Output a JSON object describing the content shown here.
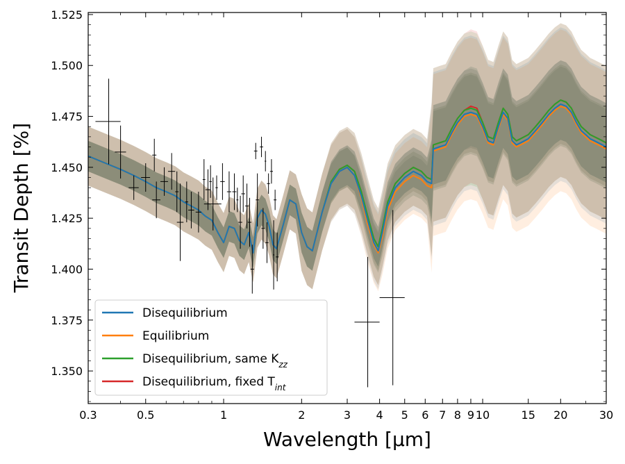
{
  "chart_data": {
    "type": "line",
    "xlabel": "Wavelength [μm]",
    "ylabel": "Transit Depth [%]",
    "xscale": "log",
    "xlim": [
      0.3,
      30
    ],
    "ylim": [
      1.334,
      1.526
    ],
    "x_ticks": [
      0.3,
      0.5,
      1,
      2,
      3,
      4,
      5,
      6,
      7,
      8,
      9,
      10,
      15,
      20,
      30
    ],
    "x_tick_labels": [
      "0.3",
      "0.5",
      "1",
      "2",
      "3",
      "4",
      "5",
      "6",
      "7",
      "8",
      "9",
      "10",
      "15",
      "20",
      "30"
    ],
    "y_ticks": [
      1.35,
      1.375,
      1.4,
      1.425,
      1.45,
      1.475,
      1.5,
      1.525
    ],
    "y_tick_labels": [
      "1.350",
      "1.375",
      "1.400",
      "1.425",
      "1.450",
      "1.475",
      "1.500",
      "1.525"
    ],
    "legend_position": "lower-left",
    "x": [
      0.3,
      0.35,
      0.4,
      0.45,
      0.5,
      0.55,
      0.6,
      0.65,
      0.7,
      0.75,
      0.8,
      0.85,
      0.9,
      0.95,
      1.0,
      1.05,
      1.1,
      1.15,
      1.2,
      1.25,
      1.3,
      1.35,
      1.4,
      1.45,
      1.5,
      1.55,
      1.6,
      1.7,
      1.8,
      1.9,
      2.0,
      2.1,
      2.2,
      2.4,
      2.6,
      2.8,
      3.0,
      3.2,
      3.4,
      3.6,
      3.8,
      3.95,
      4.1,
      4.3,
      4.6,
      5.0,
      5.4,
      5.8,
      6.1,
      6.35,
      6.45,
      6.8,
      7.2,
      7.6,
      8.0,
      8.5,
      9.0,
      9.5,
      10.0,
      10.5,
      11.0,
      11.5,
      12.0,
      12.5,
      13.0,
      13.5,
      14.0,
      15.0,
      16.0,
      17.0,
      18.0,
      19.0,
      20.0,
      21.0,
      22.0,
      23.0,
      24.0,
      25.0,
      26.0,
      27.0,
      28.0,
      29.0,
      30.0
    ],
    "series": [
      {
        "name": "Disequilibrium",
        "color": "#1f77b4",
        "values": [
          1.4555,
          1.452,
          1.449,
          1.446,
          1.443,
          1.44,
          1.438,
          1.436,
          1.433,
          1.431,
          1.429,
          1.426,
          1.424,
          1.418,
          1.413,
          1.421,
          1.42,
          1.414,
          1.412,
          1.418,
          1.408,
          1.425,
          1.429,
          1.427,
          1.421,
          1.412,
          1.41,
          1.422,
          1.434,
          1.432,
          1.418,
          1.411,
          1.409,
          1.428,
          1.442,
          1.448,
          1.45,
          1.446,
          1.436,
          1.424,
          1.413,
          1.409,
          1.418,
          1.431,
          1.44,
          1.445,
          1.448,
          1.446,
          1.443,
          1.442,
          1.459,
          1.46,
          1.461,
          1.467,
          1.472,
          1.476,
          1.477,
          1.476,
          1.47,
          1.463,
          1.462,
          1.47,
          1.477,
          1.474,
          1.463,
          1.461,
          1.462,
          1.464,
          1.468,
          1.472,
          1.476,
          1.479,
          1.481,
          1.48,
          1.477,
          1.472,
          1.468,
          1.466,
          1.464,
          1.463,
          1.462,
          1.461,
          1.46
        ]
      },
      {
        "name": "Equilibrium",
        "color": "#ff7f0e",
        "values": [
          1.4555,
          1.452,
          1.449,
          1.446,
          1.443,
          1.44,
          1.438,
          1.436,
          1.433,
          1.431,
          1.429,
          1.426,
          1.424,
          1.418,
          1.413,
          1.421,
          1.42,
          1.414,
          1.412,
          1.418,
          1.408,
          1.425,
          1.429,
          1.427,
          1.421,
          1.412,
          1.41,
          1.422,
          1.434,
          1.432,
          1.418,
          1.411,
          1.409,
          1.428,
          1.442,
          1.448,
          1.45,
          1.446,
          1.435,
          1.422,
          1.412,
          1.408,
          1.416,
          1.429,
          1.438,
          1.443,
          1.446,
          1.444,
          1.441,
          1.44,
          1.458,
          1.459,
          1.46,
          1.466,
          1.471,
          1.475,
          1.476,
          1.475,
          1.469,
          1.462,
          1.461,
          1.469,
          1.476,
          1.473,
          1.462,
          1.46,
          1.461,
          1.463,
          1.467,
          1.471,
          1.475,
          1.478,
          1.48,
          1.479,
          1.476,
          1.471,
          1.467,
          1.465,
          1.463,
          1.462,
          1.461,
          1.46,
          1.459
        ]
      },
      {
        "name": "Disequilibrium, same K_zz",
        "color": "#2ca02c",
        "values": [
          1.4555,
          1.452,
          1.449,
          1.446,
          1.443,
          1.44,
          1.438,
          1.436,
          1.433,
          1.431,
          1.429,
          1.426,
          1.424,
          1.418,
          1.413,
          1.421,
          1.42,
          1.414,
          1.412,
          1.418,
          1.408,
          1.425,
          1.429,
          1.427,
          1.421,
          1.412,
          1.41,
          1.422,
          1.434,
          1.432,
          1.418,
          1.411,
          1.409,
          1.428,
          1.443,
          1.449,
          1.451,
          1.448,
          1.438,
          1.426,
          1.415,
          1.411,
          1.42,
          1.433,
          1.442,
          1.447,
          1.45,
          1.448,
          1.445,
          1.444,
          1.461,
          1.462,
          1.463,
          1.469,
          1.474,
          1.478,
          1.479,
          1.478,
          1.472,
          1.465,
          1.464,
          1.472,
          1.479,
          1.476,
          1.465,
          1.463,
          1.464,
          1.466,
          1.47,
          1.474,
          1.478,
          1.481,
          1.483,
          1.482,
          1.479,
          1.474,
          1.47,
          1.468,
          1.466,
          1.465,
          1.464,
          1.463,
          1.462
        ]
      },
      {
        "name": "Disequilibrium, fixed T_int",
        "color": "#d62728",
        "values": [
          1.4555,
          1.452,
          1.449,
          1.446,
          1.443,
          1.44,
          1.438,
          1.436,
          1.433,
          1.431,
          1.429,
          1.426,
          1.424,
          1.418,
          1.413,
          1.421,
          1.42,
          1.414,
          1.412,
          1.418,
          1.408,
          1.425,
          1.429,
          1.427,
          1.421,
          1.412,
          1.41,
          1.422,
          1.434,
          1.432,
          1.418,
          1.411,
          1.409,
          1.428,
          1.443,
          1.449,
          1.451,
          1.448,
          1.438,
          1.426,
          1.415,
          1.411,
          1.42,
          1.433,
          1.442,
          1.447,
          1.45,
          1.448,
          1.445,
          1.444,
          1.461,
          1.462,
          1.463,
          1.469,
          1.474,
          1.478,
          1.48,
          1.479,
          1.472,
          1.465,
          1.464,
          1.472,
          1.479,
          1.476,
          1.465,
          1.463,
          1.464,
          1.466,
          1.47,
          1.474,
          1.478,
          1.481,
          1.483,
          1.482,
          1.479,
          1.474,
          1.47,
          1.468,
          1.466,
          1.465,
          1.464,
          1.463,
          1.462
        ]
      }
    ],
    "legend_labels": [
      {
        "text": "Disequilibrium",
        "subscript": ""
      },
      {
        "text": "Equilibrium",
        "subscript": ""
      },
      {
        "text": "Disequilibrium, same K",
        "subscript": "zz"
      },
      {
        "text": "Disequilibrium, fixed T",
        "subscript": "int"
      }
    ],
    "observations": [
      {
        "x": 0.36,
        "y": 1.4725,
        "xerr": 0.04,
        "yerr": 0.021
      },
      {
        "x": 0.4,
        "y": 1.4575,
        "xerr": 0.02,
        "yerr": 0.013
      },
      {
        "x": 0.45,
        "y": 1.44,
        "xerr": 0.02,
        "yerr": 0.006
      },
      {
        "x": 0.5,
        "y": 1.445,
        "xerr": 0.02,
        "yerr": 0.007
      },
      {
        "x": 0.54,
        "y": 1.456,
        "xerr": 0.01,
        "yerr": 0.008
      },
      {
        "x": 0.55,
        "y": 1.434,
        "xerr": 0.02,
        "yerr": 0.009
      },
      {
        "x": 0.59,
        "y": 1.443,
        "xerr": 0.02,
        "yerr": 0.007
      },
      {
        "x": 0.63,
        "y": 1.448,
        "xerr": 0.02,
        "yerr": 0.009
      },
      {
        "x": 0.66,
        "y": 1.438,
        "xerr": 0.01,
        "yerr": 0.01
      },
      {
        "x": 0.68,
        "y": 1.423,
        "xerr": 0.02,
        "yerr": 0.019
      },
      {
        "x": 0.72,
        "y": 1.433,
        "xerr": 0.01,
        "yerr": 0.01
      },
      {
        "x": 0.75,
        "y": 1.429,
        "xerr": 0.02,
        "yerr": 0.009
      },
      {
        "x": 0.8,
        "y": 1.428,
        "xerr": 0.02,
        "yerr": 0.01
      },
      {
        "x": 0.84,
        "y": 1.444,
        "xerr": 0.01,
        "yerr": 0.01
      },
      {
        "x": 0.87,
        "y": 1.439,
        "xerr": 0.02,
        "yerr": 0.01
      },
      {
        "x": 0.89,
        "y": 1.443,
        "xerr": 0.01,
        "yerr": 0.008
      },
      {
        "x": 0.91,
        "y": 1.432,
        "xerr": 0.07,
        "yerr": 0.013
      },
      {
        "x": 0.94,
        "y": 1.44,
        "xerr": 0.01,
        "yerr": 0.006
      },
      {
        "x": 0.99,
        "y": 1.443,
        "xerr": 0.02,
        "yerr": 0.009
      },
      {
        "x": 1.05,
        "y": 1.438,
        "xerr": 0.02,
        "yerr": 0.01
      },
      {
        "x": 1.1,
        "y": 1.438,
        "xerr": 0.02,
        "yerr": 0.009
      },
      {
        "x": 1.13,
        "y": 1.434,
        "xerr": 0.01,
        "yerr": 0.006
      },
      {
        "x": 1.16,
        "y": 1.423,
        "xerr": 0.02,
        "yerr": 0.013
      },
      {
        "x": 1.19,
        "y": 1.437,
        "xerr": 0.02,
        "yerr": 0.009
      },
      {
        "x": 1.23,
        "y": 1.431,
        "xerr": 0.02,
        "yerr": 0.011
      },
      {
        "x": 1.26,
        "y": 1.423,
        "xerr": 0.02,
        "yerr": 0.012
      },
      {
        "x": 1.29,
        "y": 1.4,
        "xerr": 0.02,
        "yerr": 0.012
      },
      {
        "x": 1.33,
        "y": 1.458,
        "xerr": 0.02,
        "yerr": 0.004
      },
      {
        "x": 1.35,
        "y": 1.434,
        "xerr": 0.02,
        "yerr": 0.013
      },
      {
        "x": 1.4,
        "y": 1.46,
        "xerr": 0.02,
        "yerr": 0.005
      },
      {
        "x": 1.42,
        "y": 1.42,
        "xerr": 0.02,
        "yerr": 0.01
      },
      {
        "x": 1.45,
        "y": 1.453,
        "xerr": 0.01,
        "yerr": 0.005
      },
      {
        "x": 1.47,
        "y": 1.413,
        "xerr": 0.02,
        "yerr": 0.01
      },
      {
        "x": 1.49,
        "y": 1.442,
        "xerr": 0.02,
        "yerr": 0.005
      },
      {
        "x": 1.53,
        "y": 1.448,
        "xerr": 0.02,
        "yerr": 0.006
      },
      {
        "x": 1.56,
        "y": 1.407,
        "xerr": 0.01,
        "yerr": 0.017
      },
      {
        "x": 1.58,
        "y": 1.434,
        "xerr": 0.02,
        "yerr": 0.005
      },
      {
        "x": 1.61,
        "y": 1.406,
        "xerr": 0.02,
        "yerr": 0.012
      },
      {
        "x": 3.6,
        "y": 1.374,
        "xerr": 0.4,
        "yerr": 0.032
      },
      {
        "x": 4.5,
        "y": 1.386,
        "xerr": 0.5,
        "yerr": 0.043
      }
    ]
  }
}
